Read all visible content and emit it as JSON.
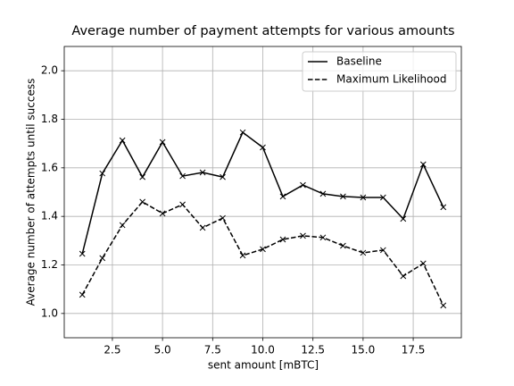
{
  "chart_data": {
    "type": "line",
    "title": "Average number of payment attempts for various amounts",
    "x_label": "sent amount [mBTC]",
    "y_label": "Average number of attempts until success",
    "x": [
      1,
      2,
      3,
      4,
      5,
      6,
      7,
      8,
      9,
      10,
      11,
      12,
      13,
      14,
      15,
      16,
      17,
      18,
      19
    ],
    "series": [
      {
        "name": "Baseline",
        "color": "#000000",
        "dash": "solid",
        "marker": "x",
        "values": [
          1.246,
          1.577,
          1.713,
          1.562,
          1.706,
          1.566,
          1.581,
          1.562,
          1.746,
          1.684,
          1.482,
          1.529,
          1.493,
          1.482,
          1.478,
          1.478,
          1.39,
          1.614,
          1.438
        ]
      },
      {
        "name": "Maximum Likelihood",
        "color": "#000000",
        "dash": "dashed",
        "marker": "x",
        "values": [
          1.077,
          1.228,
          1.364,
          1.46,
          1.412,
          1.449,
          1.353,
          1.393,
          1.239,
          1.265,
          1.305,
          1.32,
          1.313,
          1.279,
          1.25,
          1.261,
          1.154,
          1.206,
          1.033
        ]
      }
    ],
    "xlim": [
      0.1,
      19.9
    ],
    "ylim": [
      0.9,
      2.1
    ],
    "xticks": [
      2.5,
      {
        "value": 5,
        "label": "5.0"
      },
      7.5,
      {
        "value": 10,
        "label": "10.0"
      },
      12.5,
      {
        "value": 15,
        "label": "15.0"
      },
      17.5
    ],
    "yticks": [
      {
        "value": 1,
        "label": "1.0"
      },
      1.2,
      1.4,
      1.6,
      1.8,
      {
        "value": 2,
        "label": "2.0"
      }
    ],
    "grid": true,
    "legend": "upper-right"
  }
}
